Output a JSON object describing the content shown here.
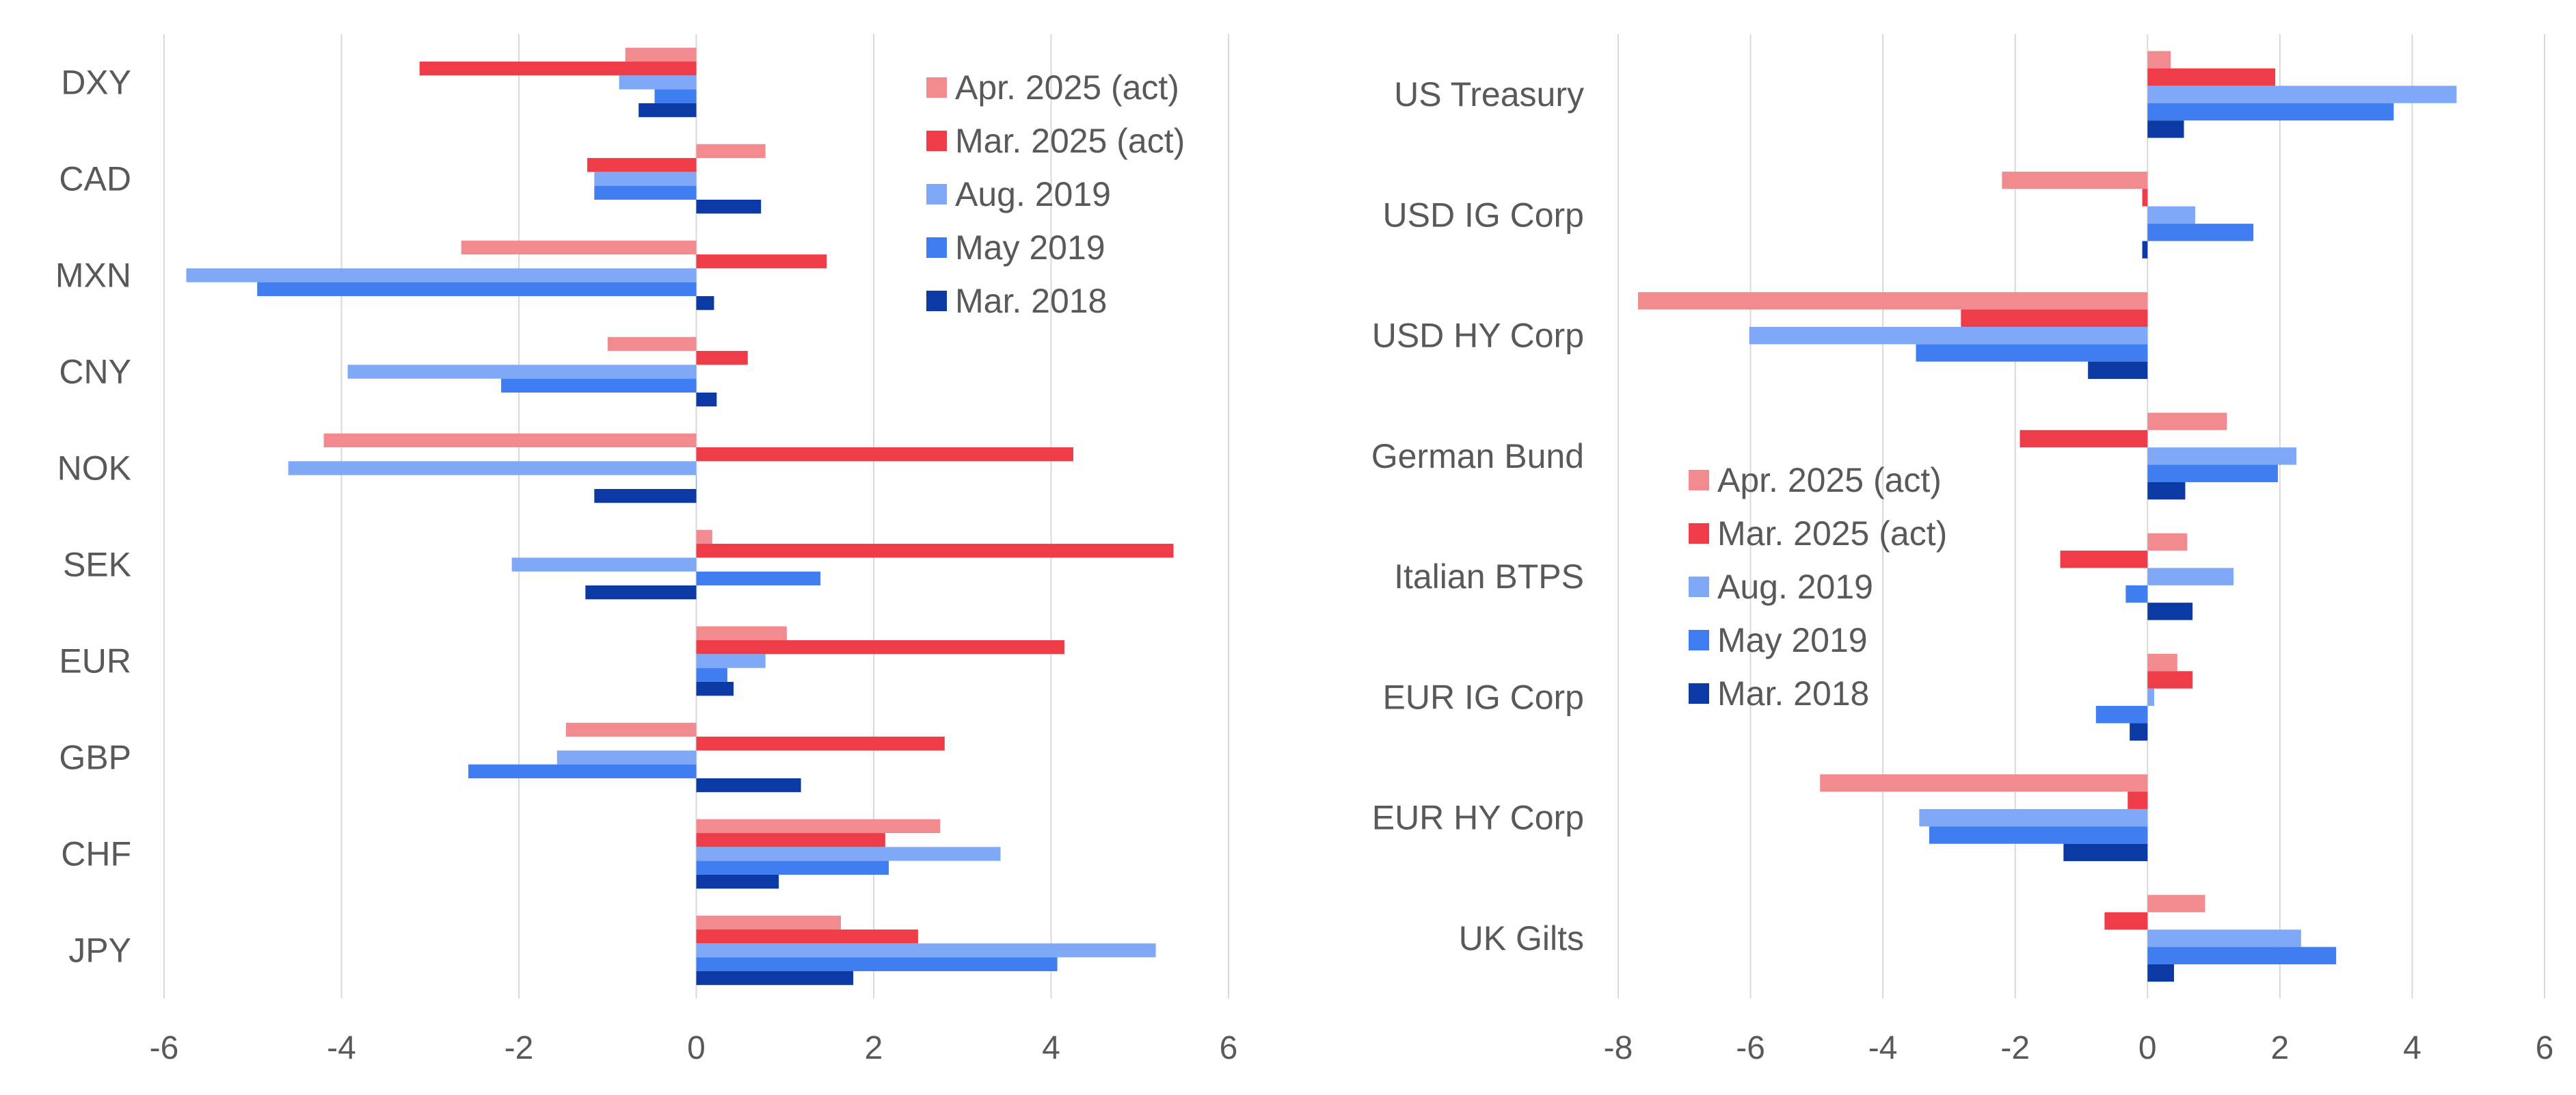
{
  "colors": {
    "Apr. 2025 (act)": "#f28b8f",
    "Mar. 2025 (act)": "#ee3c48",
    "Aug. 2019": "#7fa8f7",
    "May 2019": "#3f7ef0",
    "Mar. 2018": "#0c3aa4",
    "gridline": "#d9d9d9",
    "text": "#595959"
  },
  "chart_data": [
    {
      "type": "bar",
      "orientation": "horizontal",
      "title": "",
      "xlabel": "",
      "ylabel": "",
      "xlim": [
        -6,
        6
      ],
      "xticks": [
        -6,
        -4,
        -2,
        0,
        2,
        4,
        6
      ],
      "grid": "vertical",
      "legend_position": "top-right",
      "categories": [
        "DXY",
        "CAD",
        "MXN",
        "CNY",
        "NOK",
        "SEK",
        "EUR",
        "GBP",
        "CHF",
        "JPY"
      ],
      "series": [
        {
          "name": "Apr. 2025 (act)",
          "values": [
            -0.8,
            0.78,
            -2.65,
            -1.0,
            -4.2,
            0.18,
            1.02,
            -1.47,
            2.75,
            1.63
          ]
        },
        {
          "name": "Mar. 2025 (act)",
          "values": [
            -3.12,
            -1.23,
            1.47,
            0.58,
            4.25,
            5.38,
            4.15,
            2.8,
            2.13,
            2.5
          ]
        },
        {
          "name": "Aug. 2019",
          "values": [
            -0.87,
            -1.15,
            -5.75,
            -3.93,
            -4.6,
            -2.08,
            0.78,
            -1.57,
            3.43,
            5.18
          ]
        },
        {
          "name": "May 2019",
          "values": [
            -0.47,
            -1.15,
            -4.95,
            -2.2,
            0.0,
            1.4,
            0.35,
            -2.57,
            2.17,
            4.07
          ]
        },
        {
          "name": "Mar. 2018",
          "values": [
            -0.65,
            0.73,
            0.2,
            0.23,
            -1.15,
            -1.25,
            0.42,
            1.18,
            0.93,
            1.77
          ]
        }
      ]
    },
    {
      "type": "bar",
      "orientation": "horizontal",
      "title": "",
      "xlabel": "",
      "ylabel": "",
      "xlim": [
        -8,
        6
      ],
      "xticks": [
        -8,
        -6,
        -4,
        -2,
        0,
        2,
        4,
        6
      ],
      "grid": "vertical",
      "legend_position": "center",
      "categories": [
        "US Treasury",
        "USD IG Corp",
        "USD HY Corp",
        "German Bund",
        "Italian BTPS",
        "EUR IG Corp",
        "EUR HY Corp",
        "UK Gilts"
      ],
      "series": [
        {
          "name": "Apr. 2025 (act)",
          "values": [
            0.35,
            -2.2,
            -7.7,
            1.2,
            0.6,
            0.45,
            -4.95,
            0.87
          ]
        },
        {
          "name": "Mar. 2025 (act)",
          "values": [
            1.93,
            -0.08,
            -2.82,
            -1.93,
            -1.32,
            0.68,
            -0.3,
            -0.65
          ]
        },
        {
          "name": "Aug. 2019",
          "values": [
            4.67,
            0.72,
            -6.02,
            2.25,
            1.3,
            0.1,
            -3.45,
            2.32
          ]
        },
        {
          "name": "May 2019",
          "values": [
            3.72,
            1.6,
            -3.5,
            1.97,
            -0.33,
            -0.78,
            -3.3,
            2.85
          ]
        },
        {
          "name": "Mar. 2018",
          "values": [
            0.55,
            -0.08,
            -0.9,
            0.57,
            0.68,
            -0.27,
            -1.27,
            0.4
          ]
        }
      ]
    }
  ]
}
